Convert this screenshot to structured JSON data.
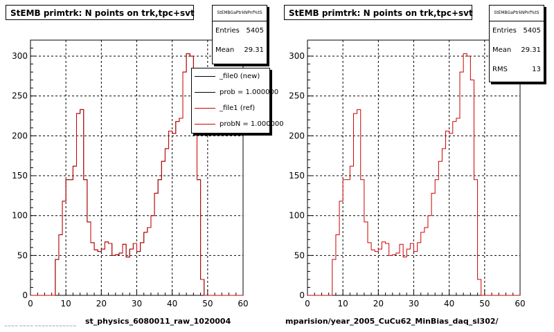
{
  "colors": {
    "new": "#000000",
    "ref": "#cc0000",
    "grid": "#000000",
    "background": "#ffffff"
  },
  "chart_data": [
    {
      "type": "bar",
      "title": "StEMB primtrk: N points on trk,tpc+svt",
      "xlabel": "st_physics_6080011_raw_1020004",
      "ylabel": "",
      "xlim": [
        0,
        60
      ],
      "ylim": [
        0,
        320
      ],
      "x_ticks": [
        "0",
        "10",
        "20",
        "30",
        "40",
        "50",
        "60"
      ],
      "y_ticks": [
        "0",
        "50",
        "100",
        "150",
        "200",
        "250",
        "300"
      ],
      "grid": true,
      "bin_width": 1,
      "x": [
        0,
        1,
        2,
        3,
        4,
        5,
        6,
        7,
        8,
        9,
        10,
        11,
        12,
        13,
        14,
        15,
        16,
        17,
        18,
        19,
        20,
        21,
        22,
        23,
        24,
        25,
        26,
        27,
        28,
        29,
        30,
        31,
        32,
        33,
        34,
        35,
        36,
        37,
        38,
        39,
        40,
        41,
        42,
        43,
        44,
        45,
        46,
        47,
        48,
        49,
        50,
        51,
        52,
        53,
        54,
        55,
        56,
        57,
        58,
        59
      ],
      "series": [
        {
          "name": "_file0 (new)",
          "values": [
            0,
            0,
            0,
            0,
            0,
            0,
            0,
            45,
            76,
            118,
            145,
            145,
            162,
            228,
            233,
            145,
            92,
            66,
            57,
            55,
            58,
            67,
            65,
            50,
            51,
            53,
            64,
            48,
            58,
            65,
            55,
            66,
            79,
            85,
            100,
            128,
            145,
            168,
            184,
            206,
            203,
            218,
            222,
            280,
            303,
            300,
            270,
            145,
            20,
            0,
            0,
            0,
            0,
            0,
            0,
            0,
            0,
            0,
            0,
            0
          ]
        },
        {
          "name": "_file1 (ref)",
          "values": [
            0,
            0,
            0,
            0,
            0,
            0,
            0,
            45,
            76,
            118,
            145,
            145,
            162,
            228,
            233,
            145,
            92,
            66,
            57,
            55,
            58,
            67,
            65,
            50,
            51,
            53,
            64,
            48,
            58,
            65,
            55,
            66,
            79,
            85,
            100,
            128,
            145,
            168,
            184,
            206,
            203,
            218,
            222,
            280,
            303,
            300,
            270,
            145,
            20,
            0,
            0,
            0,
            0,
            0,
            0,
            0,
            0,
            0,
            0,
            0
          ]
        }
      ],
      "stats": {
        "header": "StEMBGaPtrkNPnf%tS",
        "entries_label": "Entries",
        "entries": "5405",
        "mean_label": "Mean",
        "mean": "29.31"
      },
      "legend": {
        "position": "top-right",
        "items": [
          "_file0 (new)",
          "prob = 1.000000",
          "_file1 (ref)",
          "probN = 1.000000"
        ]
      }
    },
    {
      "type": "bar",
      "title": "StEMB primtrk: N points on trk,tpc+svt",
      "xlabel": "mparision/year_2005_CuCu62_MinBias_daq_sl302/",
      "ylabel": "",
      "xlim": [
        0,
        60
      ],
      "ylim": [
        0,
        320
      ],
      "x_ticks": [
        "0",
        "10",
        "20",
        "30",
        "40",
        "50",
        "60"
      ],
      "y_ticks": [
        "0",
        "50",
        "100",
        "150",
        "200",
        "250",
        "300"
      ],
      "grid": true,
      "bin_width": 1,
      "x": [
        0,
        1,
        2,
        3,
        4,
        5,
        6,
        7,
        8,
        9,
        10,
        11,
        12,
        13,
        14,
        15,
        16,
        17,
        18,
        19,
        20,
        21,
        22,
        23,
        24,
        25,
        26,
        27,
        28,
        29,
        30,
        31,
        32,
        33,
        34,
        35,
        36,
        37,
        38,
        39,
        40,
        41,
        42,
        43,
        44,
        45,
        46,
        47,
        48,
        49,
        50,
        51,
        52,
        53,
        54,
        55,
        56,
        57,
        58,
        59
      ],
      "series": [
        {
          "values": [
            0,
            0,
            0,
            0,
            0,
            0,
            0,
            45,
            76,
            118,
            145,
            145,
            162,
            228,
            233,
            145,
            92,
            66,
            57,
            55,
            58,
            67,
            65,
            50,
            51,
            53,
            64,
            48,
            58,
            65,
            55,
            66,
            79,
            85,
            100,
            128,
            145,
            168,
            184,
            206,
            203,
            218,
            222,
            280,
            303,
            300,
            270,
            145,
            20,
            0,
            0,
            0,
            0,
            0,
            0,
            0,
            0,
            0,
            0,
            0
          ]
        }
      ],
      "stats": {
        "header": "StEMBGaPtrkNPnf%tS",
        "entries_label": "Entries",
        "entries": "5405",
        "mean_label": "Mean",
        "mean": "29.31",
        "rms_label": "RMS",
        "rms": "13"
      }
    }
  ],
  "footer_text": "~~~~ ~~~~ ~~~~~~~~~~~~"
}
